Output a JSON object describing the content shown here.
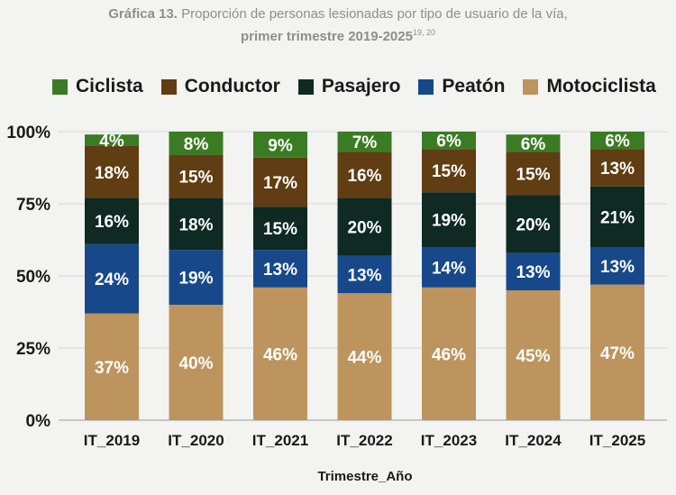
{
  "header": {
    "title_prefix": "Gráfica 13.",
    "title_text": "Proporción de personas lesionadas por tipo de usuario de la vía,",
    "subtitle": "primer trimestre 2019-2025",
    "subtitle_notes": "19, 20"
  },
  "chart_data": {
    "type": "bar",
    "stacked": true,
    "categories": [
      "IT_2019",
      "IT_2020",
      "IT_2021",
      "IT_2022",
      "IT_2023",
      "IT_2024",
      "IT_2025"
    ],
    "xlabel": "Trimestre_Año",
    "ylabel": "",
    "ylim": [
      0,
      100
    ],
    "yticks": [
      {
        "value": 0,
        "label": "0%"
      },
      {
        "value": 25,
        "label": "25%"
      },
      {
        "value": 50,
        "label": "50%"
      },
      {
        "value": 75,
        "label": "75%"
      },
      {
        "value": 100,
        "label": "100%"
      }
    ],
    "legend_position": "top",
    "series": [
      {
        "name": "Motociclista",
        "color": "#bd945d",
        "values": [
          37,
          40,
          46,
          44,
          46,
          45,
          47
        ]
      },
      {
        "name": "Peatón",
        "color": "#17498a",
        "values": [
          24,
          19,
          13,
          13,
          14,
          13,
          13
        ]
      },
      {
        "name": "Pasajero",
        "color": "#0e2a22",
        "values": [
          16,
          18,
          15,
          20,
          19,
          20,
          21
        ]
      },
      {
        "name": "Conductor",
        "color": "#603d12",
        "values": [
          18,
          15,
          17,
          16,
          15,
          15,
          13
        ]
      },
      {
        "name": "Ciclista",
        "color": "#3a7c23",
        "values": [
          4,
          8,
          9,
          7,
          6,
          6,
          6
        ]
      }
    ]
  },
  "legend": {
    "items": [
      {
        "label": "Ciclista",
        "color": "#3a7c23"
      },
      {
        "label": "Conductor",
        "color": "#603d12"
      },
      {
        "label": "Pasajero",
        "color": "#0e2a22"
      },
      {
        "label": "Peatón",
        "color": "#17498a"
      },
      {
        "label": "Motociclista",
        "color": "#bd945d"
      }
    ]
  }
}
